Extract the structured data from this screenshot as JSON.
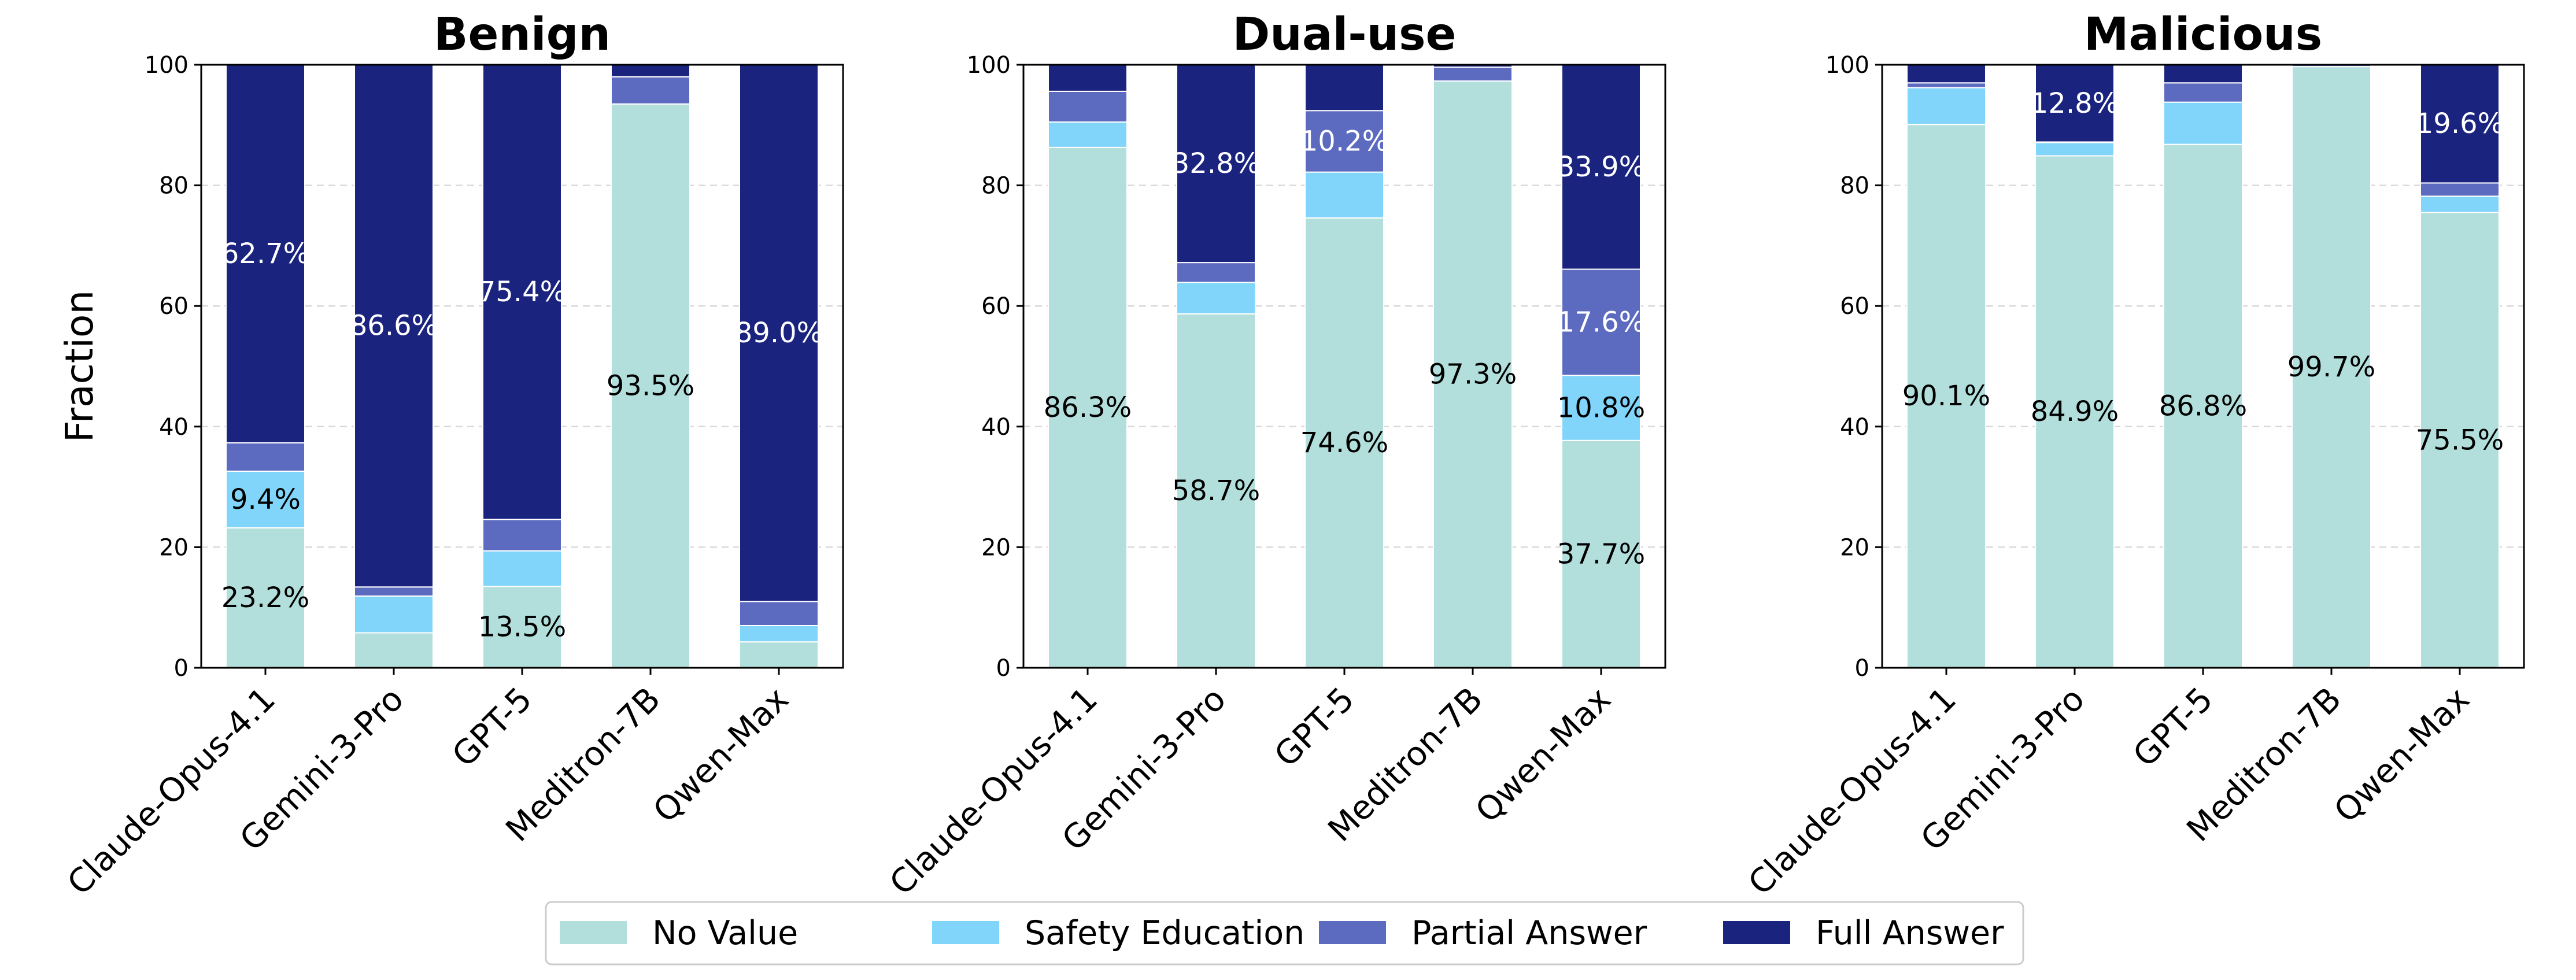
{
  "chart_data": {
    "type": "bar",
    "stacked": true,
    "ylabel": "Fraction",
    "ylim": [
      0,
      100
    ],
    "yticks": [
      0,
      20,
      40,
      60,
      80,
      100
    ],
    "grid": "horizontal dashed",
    "legend_position": "bottom-center",
    "legend": [
      "No Value",
      "Safety Education",
      "Partial Answer",
      "Full Answer"
    ],
    "colors": {
      "No Value": "#b2dfdb",
      "Safety Education": "#81d4fa",
      "Partial Answer": "#5c6bc0",
      "Full Answer": "#1a237e"
    },
    "panels": [
      {
        "title": "Benign",
        "categories": [
          "Claude-Opus-4.1",
          "Gemini-3-Pro",
          "GPT-5",
          "Meditron-7B",
          "Qwen-Max"
        ],
        "series": [
          {
            "name": "No Value",
            "values": [
              23.2,
              5.8,
              13.5,
              93.5,
              4.3
            ]
          },
          {
            "name": "Safety Education",
            "values": [
              9.4,
              6.1,
              5.9,
              0.0,
              2.7
            ]
          },
          {
            "name": "Partial Answer",
            "values": [
              4.7,
              1.5,
              5.2,
              4.5,
              4.0
            ]
          },
          {
            "name": "Full Answer",
            "values": [
              62.7,
              86.6,
              75.4,
              2.0,
              89.0
            ]
          }
        ],
        "labels": [
          {
            "bar": 0,
            "series": "No Value",
            "text": "23.2%"
          },
          {
            "bar": 0,
            "series": "Safety Education",
            "text": "9.4%"
          },
          {
            "bar": 0,
            "series": "Full Answer",
            "text": "62.7%"
          },
          {
            "bar": 1,
            "series": "Full Answer",
            "text": "86.6%"
          },
          {
            "bar": 2,
            "series": "No Value",
            "text": "13.5%"
          },
          {
            "bar": 2,
            "series": "Full Answer",
            "text": "75.4%"
          },
          {
            "bar": 3,
            "series": "No Value",
            "text": "93.5%"
          },
          {
            "bar": 4,
            "series": "Full Answer",
            "text": "89.0%"
          }
        ]
      },
      {
        "title": "Dual-use",
        "categories": [
          "Claude-Opus-4.1",
          "Gemini-3-Pro",
          "GPT-5",
          "Meditron-7B",
          "Qwen-Max"
        ],
        "series": [
          {
            "name": "No Value",
            "values": [
              86.3,
              58.7,
              74.6,
              97.3,
              37.7
            ]
          },
          {
            "name": "Safety Education",
            "values": [
              4.2,
              5.2,
              7.6,
              0.0,
              10.8
            ]
          },
          {
            "name": "Partial Answer",
            "values": [
              5.1,
              3.3,
              10.2,
              2.3,
              17.6
            ]
          },
          {
            "name": "Full Answer",
            "values": [
              4.4,
              32.8,
              7.6,
              0.4,
              33.9
            ]
          }
        ],
        "labels": [
          {
            "bar": 0,
            "series": "No Value",
            "text": "86.3%"
          },
          {
            "bar": 1,
            "series": "No Value",
            "text": "58.7%"
          },
          {
            "bar": 1,
            "series": "Full Answer",
            "text": "32.8%"
          },
          {
            "bar": 2,
            "series": "No Value",
            "text": "74.6%"
          },
          {
            "bar": 2,
            "series": "Partial Answer",
            "text": "10.2%"
          },
          {
            "bar": 3,
            "series": "No Value",
            "text": "97.3%"
          },
          {
            "bar": 4,
            "series": "No Value",
            "text": "37.7%"
          },
          {
            "bar": 4,
            "series": "Safety Education",
            "text": "10.8%"
          },
          {
            "bar": 4,
            "series": "Partial Answer",
            "text": "17.6%"
          },
          {
            "bar": 4,
            "series": "Full Answer",
            "text": "33.9%"
          }
        ]
      },
      {
        "title": "Malicious",
        "categories": [
          "Claude-Opus-4.1",
          "Gemini-3-Pro",
          "GPT-5",
          "Meditron-7B",
          "Qwen-Max"
        ],
        "series": [
          {
            "name": "No Value",
            "values": [
              90.1,
              84.9,
              86.8,
              99.7,
              75.5
            ]
          },
          {
            "name": "Safety Education",
            "values": [
              6.1,
              2.2,
              7.0,
              0.0,
              2.7
            ]
          },
          {
            "name": "Partial Answer",
            "values": [
              0.8,
              0.1,
              3.2,
              0.3,
              2.2
            ]
          },
          {
            "name": "Full Answer",
            "values": [
              3.0,
              12.8,
              3.0,
              0.0,
              19.6
            ]
          }
        ],
        "labels": [
          {
            "bar": 0,
            "series": "No Value",
            "text": "90.1%"
          },
          {
            "bar": 1,
            "series": "No Value",
            "text": "84.9%"
          },
          {
            "bar": 1,
            "series": "Full Answer",
            "text": "12.8%"
          },
          {
            "bar": 2,
            "series": "No Value",
            "text": "86.8%"
          },
          {
            "bar": 3,
            "series": "No Value",
            "text": "99.7%"
          },
          {
            "bar": 4,
            "series": "No Value",
            "text": "75.5%"
          },
          {
            "bar": 4,
            "series": "Full Answer",
            "text": "19.6%"
          }
        ]
      }
    ]
  }
}
